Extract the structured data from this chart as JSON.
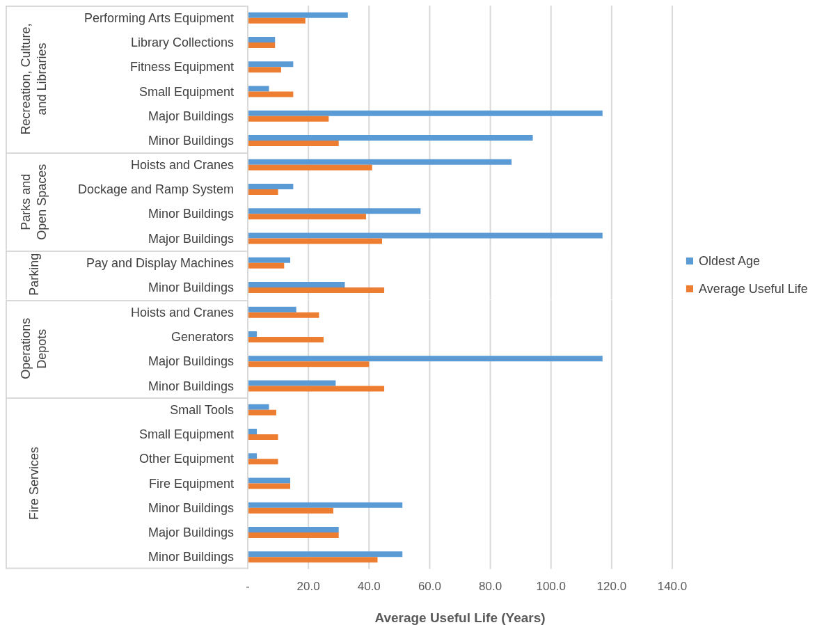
{
  "chart_data": [
    {
      "type": "bar",
      "orientation": "horizontal",
      "ylabel": "Recreation, Culture, and Libraries",
      "categories": [
        "Performing Arts Equipment",
        "Library Collections",
        "Fitness Equipment",
        "Small Equipment",
        "Major Buildings",
        "Minor Buildings"
      ],
      "series": [
        {
          "color": "#5b9bd5",
          "values": [
            33,
            9,
            15,
            7,
            117,
            94
          ]
        },
        {
          "color": "#ed7d31",
          "values": [
            19,
            9,
            11,
            15,
            26.7,
            30
          ]
        }
      ],
      "xlim": [
        0,
        140
      ],
      "xticks": [
        0,
        20,
        40,
        60,
        80,
        100,
        120,
        140
      ],
      "grid": "x",
      "tick_labels": "y"
    },
    {
      "type": "bar",
      "orientation": "horizontal",
      "ylabel": "Parks and Open Spaces",
      "categories": [
        "Hoists and Cranes",
        "Dockage and Ramp System",
        "Minor Buildings",
        "Major Buildings"
      ],
      "series": [
        {
          "color": "#5b9bd5",
          "values": [
            87,
            15,
            57,
            117
          ]
        },
        {
          "color": "#ed7d31",
          "values": [
            41,
            10,
            39,
            44.3
          ]
        }
      ],
      "xlim": [
        0,
        140
      ],
      "xticks": [
        0,
        20,
        40,
        60,
        80,
        100,
        120,
        140
      ],
      "grid": "x",
      "tick_labels": "y"
    },
    {
      "type": "bar",
      "orientation": "horizontal",
      "ylabel": "Parking",
      "categories": [
        "Pay and Display Machines",
        "Minor Buildings"
      ],
      "series": [
        {
          "name": "Oldest Age",
          "color": "#5b9bd5",
          "values": [
            14,
            32
          ]
        },
        {
          "name": "Average Useful Life",
          "color": "#ed7d31",
          "values": [
            12,
            45
          ]
        }
      ],
      "xlim": [
        0,
        140
      ],
      "xticks": [
        0,
        20,
        40,
        60,
        80,
        100,
        120,
        140
      ],
      "grid": "x",
      "tick_labels": "y",
      "legend": "right"
    },
    {
      "type": "bar",
      "orientation": "horizontal",
      "ylabel": "Operations Depots",
      "categories": [
        "Hoists and Cranes",
        "Generators",
        "Major Buildings",
        "Minor Buildings"
      ],
      "series": [
        {
          "color": "#5b9bd5",
          "values": [
            16,
            3,
            117,
            29
          ]
        },
        {
          "color": "#ed7d31",
          "values": [
            23.5,
            25,
            40,
            45
          ]
        }
      ],
      "xlim": [
        0,
        140
      ],
      "xticks": [
        0,
        20,
        40,
        60,
        80,
        100,
        120,
        140
      ],
      "grid": "x",
      "tick_labels": "y"
    },
    {
      "type": "bar",
      "orientation": "horizontal",
      "ylabel": "Fire Services",
      "xlabel": "Average Useful Life (Years)",
      "categories": [
        "Small Tools",
        "Small Equipment",
        "Other Equipment",
        "Fire Equipment",
        "Minor Buildings",
        "Major Buildings",
        "Minor Buildings"
      ],
      "series": [
        {
          "color": "#5b9bd5",
          "values": [
            7,
            3,
            3,
            14,
            51,
            30,
            51
          ]
        },
        {
          "color": "#ed7d31",
          "values": [
            9.4,
            10,
            10,
            14,
            28.2,
            30,
            42.8
          ]
        }
      ],
      "xlim": [
        0,
        140
      ],
      "xticks": [
        {
          "value": 0,
          "label": "-"
        },
        {
          "value": 20,
          "label": "20.0"
        },
        {
          "value": 40,
          "label": "40.0"
        },
        {
          "value": 60,
          "label": "60.0"
        },
        {
          "value": 80,
          "label": "80.0"
        },
        {
          "value": 100,
          "label": "100.0"
        },
        {
          "value": 120,
          "label": "120.0"
        },
        {
          "value": 140,
          "label": "140.0"
        }
      ],
      "grid": "x"
    }
  ]
}
